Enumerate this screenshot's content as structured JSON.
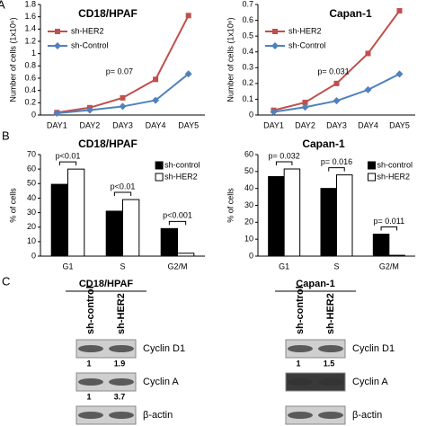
{
  "panel_labels": [
    "A",
    "B",
    "C"
  ],
  "chart_data": [
    {
      "type": "line",
      "title": "CD18/HPAF",
      "ylabel": "Number of cells (1x10⁶)",
      "categories": [
        "DAY1",
        "DAY2",
        "DAY3",
        "DAY4",
        "DAY5"
      ],
      "series": [
        {
          "name": "sh-HER2",
          "color": "#c0504d",
          "marker": "square",
          "values": [
            0.04,
            0.12,
            0.28,
            0.58,
            1.62
          ]
        },
        {
          "name": "sh-Control",
          "color": "#4f81bd",
          "marker": "diamond",
          "values": [
            0.03,
            0.08,
            0.14,
            0.24,
            0.67
          ]
        }
      ],
      "ylim": [
        0,
        1.8
      ],
      "yticks": [
        0,
        0.2,
        0.4,
        0.6,
        0.8,
        1,
        1.2,
        1.4,
        1.6,
        1.8
      ],
      "annotation": "p= 0.07",
      "legend": "upper left"
    },
    {
      "type": "line",
      "title": "Capan-1",
      "ylabel": "Number of cells (1x10⁶)",
      "categories": [
        "DAY1",
        "DAY2",
        "DAY3",
        "DAY4",
        "DAY5"
      ],
      "series": [
        {
          "name": "sh-HER2",
          "color": "#c0504d",
          "marker": "square",
          "values": [
            0.03,
            0.08,
            0.2,
            0.39,
            0.66
          ]
        },
        {
          "name": "sh-Control",
          "color": "#4f81bd",
          "marker": "diamond",
          "values": [
            0.02,
            0.05,
            0.09,
            0.16,
            0.26
          ]
        }
      ],
      "ylim": [
        0,
        0.7
      ],
      "yticks": [
        0,
        0.1,
        0.2,
        0.3,
        0.4,
        0.5,
        0.6,
        0.7
      ],
      "annotation": "p= 0.031",
      "legend": "upper left"
    },
    {
      "type": "bar",
      "title": "CD18/HPAF",
      "ylabel": "% of cells",
      "categories": [
        "G1",
        "S",
        "G2/M"
      ],
      "series": [
        {
          "name": "sh-control",
          "color": "#000000",
          "values": [
            49.5,
            31,
            19
          ]
        },
        {
          "name": "sh-HER2",
          "color": "#ffffff",
          "values": [
            60,
            39,
            2
          ]
        }
      ],
      "ylim": [
        0,
        70
      ],
      "yticks": [
        0,
        10,
        20,
        30,
        40,
        50,
        60,
        70
      ],
      "p_labels": [
        "p<0.01",
        "p<0.01",
        "p<0.001"
      ],
      "legend": "right"
    },
    {
      "type": "bar",
      "title": "Capan-1",
      "ylabel": "% of cells",
      "categories": [
        "G1",
        "S",
        "G2/M"
      ],
      "series": [
        {
          "name": "sh-control",
          "color": "#000000",
          "values": [
            47,
            40,
            13
          ]
        },
        {
          "name": "sh-HER2",
          "color": "#ffffff",
          "values": [
            51.5,
            48,
            0.5
          ]
        }
      ],
      "ylim": [
        0,
        60
      ],
      "yticks": [
        0,
        10,
        20,
        30,
        40,
        50,
        60
      ],
      "p_labels": [
        "p= 0.032",
        "p= 0.016",
        "p= 0.011"
      ],
      "legend": "right"
    }
  ],
  "blots": [
    {
      "title": "CD18/HPAF",
      "lanes": [
        "sh-control",
        "sh-HER2"
      ],
      "rows": [
        {
          "label": "Cyclin D1",
          "values": [
            1,
            1.9
          ]
        },
        {
          "label": "Cyclin A",
          "values": [
            1,
            3.7
          ]
        },
        {
          "label": "β-actin"
        }
      ]
    },
    {
      "title": "Capan-1",
      "lanes": [
        "sh-control",
        "sh-HER2"
      ],
      "rows": [
        {
          "label": "Cyclin D1",
          "values": [
            1,
            1.5
          ]
        },
        {
          "label": "Cyclin A"
        },
        {
          "label": "β-actin"
        }
      ]
    }
  ]
}
